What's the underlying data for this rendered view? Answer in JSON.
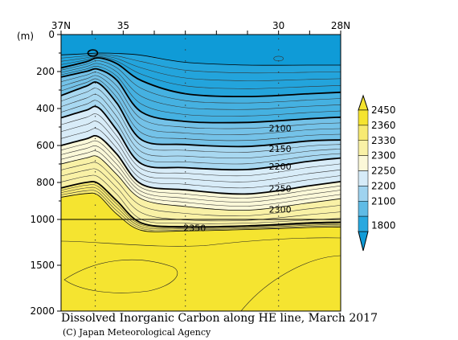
{
  "chart_data": {
    "type": "contour",
    "title": "Dissolved Inorganic Carbon along HE line, March 2017",
    "credit": "(C) Japan Meteorological Agency",
    "y_unit": "(m)",
    "x_tick_labels": [
      "37N",
      "35",
      "30",
      "28N"
    ],
    "x_tick_lat": [
      37,
      35,
      30,
      28
    ],
    "xlim": [
      37,
      28
    ],
    "y_ticks": [
      0,
      200,
      400,
      600,
      800,
      1000,
      1500,
      2000
    ],
    "y_tick_labels": [
      "0",
      "200",
      "400",
      "600",
      "800",
      "1000",
      "1500",
      "2000"
    ],
    "y_axis_break": 1000,
    "ylim": [
      0,
      2000
    ],
    "colorbar": {
      "labels": [
        "2450",
        "2360",
        "2330",
        "2300",
        "2250",
        "2200",
        "2100",
        "1800"
      ],
      "colors": [
        "#f5e430",
        "#f7ec6a",
        "#f9f2a8",
        "#fbf8d8",
        "#d6ebf8",
        "#a4d6f1",
        "#64bde6",
        "#28a8df",
        "#0f9bd7"
      ]
    },
    "contour_labels": [
      {
        "value": "2100",
        "lat": 29.95,
        "depth": 507
      },
      {
        "value": "2150",
        "lat": 29.95,
        "depth": 617
      },
      {
        "value": "2200",
        "lat": 29.95,
        "depth": 712
      },
      {
        "value": "2250",
        "lat": 29.95,
        "depth": 833
      },
      {
        "value": "2300",
        "lat": 29.95,
        "depth": 945
      },
      {
        "value": "2350",
        "lat": 32.7,
        "depth": 1093
      }
    ],
    "isolines": [
      {
        "value": "2050",
        "bold": false,
        "points": [
          [
            37,
            110
          ],
          [
            36.2,
            104
          ],
          [
            35.8,
            100
          ],
          [
            35.2,
            102
          ],
          [
            34.4,
            112
          ],
          [
            33,
            150
          ],
          [
            31,
            165
          ],
          [
            29,
            165
          ],
          [
            28,
            165
          ]
        ]
      },
      {
        "value": "2100",
        "bold": true,
        "points": [
          [
            37,
            180
          ],
          [
            36.2,
            148
          ],
          [
            35.8,
            126
          ],
          [
            35.2,
            158
          ],
          [
            34.4,
            250
          ],
          [
            33,
            320
          ],
          [
            31,
            335
          ],
          [
            29,
            320
          ],
          [
            28,
            312
          ]
        ]
      },
      {
        "value": "2150",
        "bold": true,
        "points": [
          [
            37,
            230
          ],
          [
            36.2,
            200
          ],
          [
            35.8,
            188
          ],
          [
            35.2,
            248
          ],
          [
            34.4,
            420
          ],
          [
            33,
            470
          ],
          [
            31,
            475
          ],
          [
            29,
            455
          ],
          [
            28,
            447
          ]
        ]
      },
      {
        "value": "2200",
        "bold": true,
        "points": [
          [
            37,
            330
          ],
          [
            36.2,
            280
          ],
          [
            35.8,
            262
          ],
          [
            35.2,
            372
          ],
          [
            34.4,
            570
          ],
          [
            33,
            595
          ],
          [
            31,
            605
          ],
          [
            29,
            575
          ],
          [
            28,
            570
          ]
        ]
      },
      {
        "value": "2250",
        "bold": true,
        "points": [
          [
            37,
            450
          ],
          [
            36.2,
            410
          ],
          [
            35.8,
            395
          ],
          [
            35.2,
            518
          ],
          [
            34.4,
            700
          ],
          [
            33,
            720
          ],
          [
            31,
            730
          ],
          [
            29,
            685
          ],
          [
            28,
            668
          ]
        ]
      },
      {
        "value": "2300",
        "bold": true,
        "points": [
          [
            37,
            600
          ],
          [
            36.2,
            565
          ],
          [
            35.8,
            552
          ],
          [
            35.2,
            648
          ],
          [
            34.4,
            810
          ],
          [
            33,
            840
          ],
          [
            31,
            862
          ],
          [
            29,
            818
          ],
          [
            28,
            795
          ]
        ]
      },
      {
        "value": "2330",
        "bold": false,
        "points": [
          [
            37,
            700
          ],
          [
            36.2,
            668
          ],
          [
            35.8,
            662
          ],
          [
            35.2,
            758
          ],
          [
            34.4,
            890
          ],
          [
            33,
            930
          ],
          [
            31,
            950
          ],
          [
            29,
            910
          ],
          [
            28,
            888
          ]
        ]
      },
      {
        "value": "2350",
        "bold": true,
        "points": [
          [
            37,
            830
          ],
          [
            36.2,
            800
          ],
          [
            35.8,
            806
          ],
          [
            35.2,
            900
          ],
          [
            34.4,
            1040
          ],
          [
            33,
            1080
          ],
          [
            31,
            1070
          ],
          [
            29,
            1038
          ],
          [
            28,
            1030
          ]
        ]
      },
      {
        "value": "2360",
        "bold": false,
        "points": [
          [
            37,
            880
          ],
          [
            36.2,
            860
          ],
          [
            35.8,
            870
          ],
          [
            35.2,
            972
          ],
          [
            34.4,
            1120
          ],
          [
            33,
            1125
          ],
          [
            31,
            1110
          ],
          [
            29,
            1088
          ],
          [
            28,
            1082
          ]
        ]
      }
    ]
  }
}
